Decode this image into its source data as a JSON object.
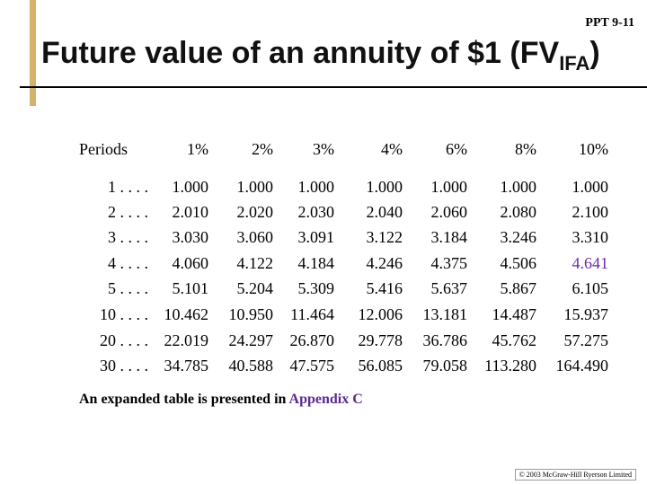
{
  "header": {
    "slide_number": "PPT 9-11",
    "title": "Future value of an annuity of $1 (FV",
    "title_subscript": "IFA",
    "title_end": ")"
  },
  "table": {
    "columns": [
      "Periods",
      "1%",
      "2%",
      "3%",
      "4%",
      "6%",
      "8%",
      "10%"
    ],
    "rows": [
      [
        "1 . . . .",
        "1.000",
        "1.000",
        "1.000",
        "1.000",
        "1.000",
        "1.000",
        "1.000"
      ],
      [
        "2 . . . .",
        "2.010",
        "2.020",
        "2.030",
        "2.040",
        "2.060",
        "2.080",
        "2.100"
      ],
      [
        "3 . . . .",
        "3.030",
        "3.060",
        "3.091",
        "3.122",
        "3.184",
        "3.246",
        "3.310"
      ],
      [
        "4 . . . .",
        "4.060",
        "4.122",
        "4.184",
        "4.246",
        "4.375",
        "4.506",
        "4.641"
      ],
      [
        "5 . . . .",
        "5.101",
        "5.204",
        "5.309",
        "5.416",
        "5.637",
        "5.867",
        "6.105"
      ],
      [
        "10 . . . .",
        "10.462",
        "10.950",
        "11.464",
        "12.006",
        "13.181",
        "14.487",
        "15.937"
      ],
      [
        "20 . . . .",
        "22.019",
        "24.297",
        "26.870",
        "29.778",
        "36.786",
        "45.762",
        "57.275"
      ],
      [
        "30 . . . .",
        "34.785",
        "40.588",
        "47.575",
        "56.085",
        "79.058",
        "113.280",
        "164.490"
      ]
    ]
  },
  "footnote": {
    "text": "An expanded table is presented in ",
    "link": "Appendix C"
  },
  "copyright": "© 2003 McGraw-Hill Ryerson Limited"
}
